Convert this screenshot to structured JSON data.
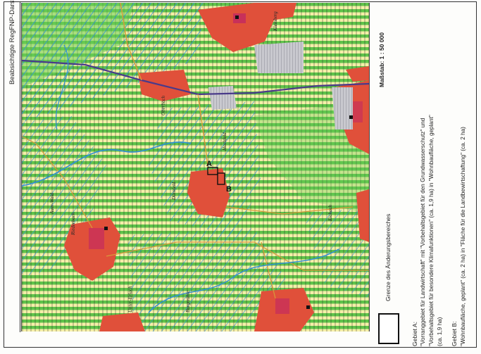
{
  "map": {
    "title": "Beabsichtigte RegFNP-Darstellung",
    "scale_label": "Maßstab: 1 : 50 000",
    "markers": {
      "a": "A",
      "b": "B"
    },
    "place_labels": [
      "Riederbach",
      "Dörnfeld",
      "Kleinberg",
      "Oberbach",
      "Burgmühle",
      "Eichach",
      "Unter-Erlach",
      "Auer-Wald",
      "Hochfeld"
    ]
  },
  "legend": {
    "boundary_label": "Grenze des Änderungsbereiches",
    "area_a": {
      "heading": "Gebiet A:",
      "lines": [
        "\"Vorranggebiet für Landwirtschaft\" mit \"Vorbehaltsgebiet für den Grundwasserschutz\" und",
        "\"Vorbehaltsgebiet für besondere Klimafunktionen\" (ca. 1,9  ha) in \"Wohnbaufläche, geplant\"",
        "(ca. 1,9 ha)"
      ]
    },
    "area_b": {
      "heading": "Gebiet B:",
      "lines": [
        "\"Wohnbaufläche, geplant\" (ca. 2 ha) in \"Fläche für die Landbewirtschaftung\" (ca. 2 ha)"
      ]
    }
  },
  "colors": {
    "agri_stripe": "#5fc34a",
    "agri_bg": "#f4f0a8",
    "water_hatch": "#2f8fd8",
    "settlement": "#e0503a",
    "settlement_core": "#c8305a",
    "industry": "#a8a8ae",
    "road": "#4a3a8a"
  }
}
